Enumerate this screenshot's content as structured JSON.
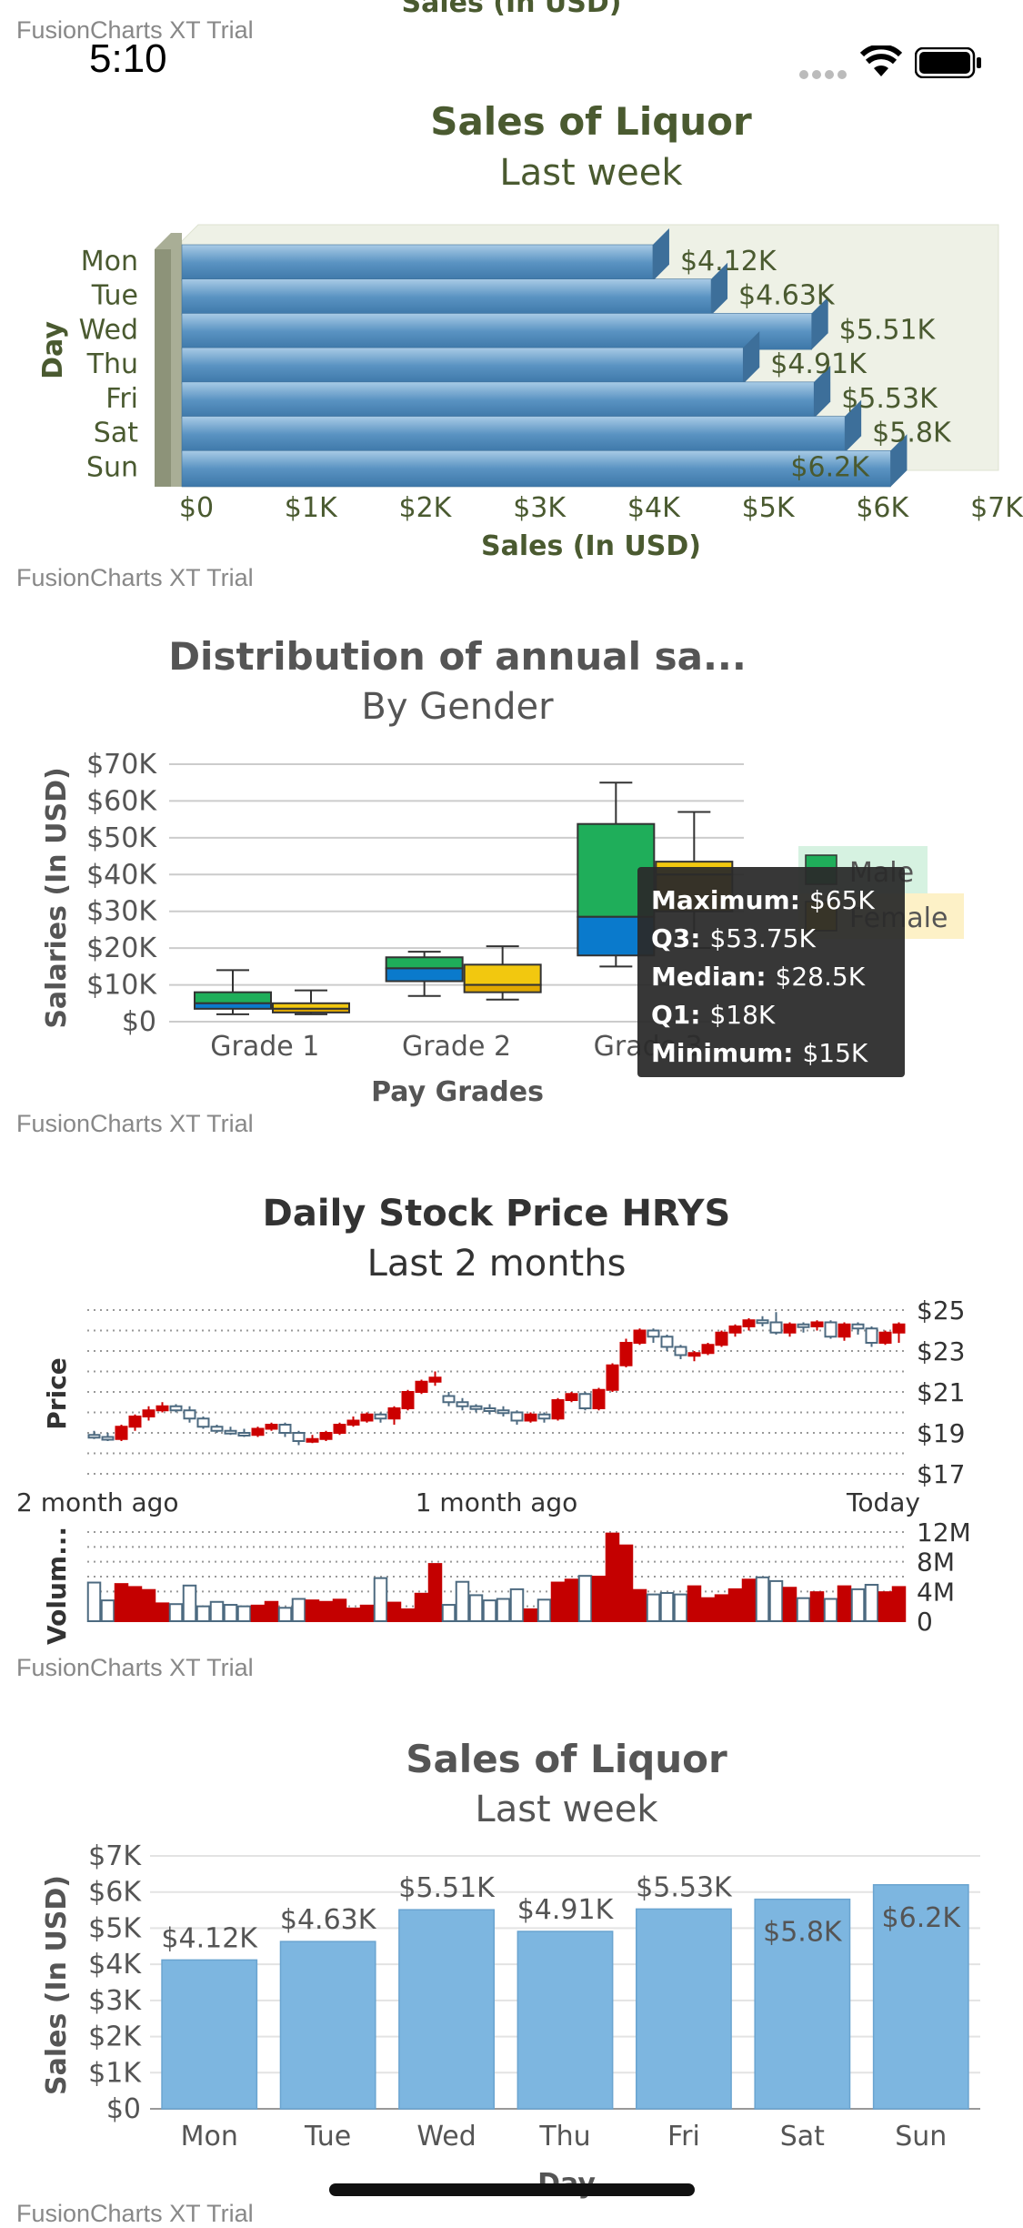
{
  "status_bar": {
    "time": "5:10"
  },
  "top_cut_text": "Sales (In USD)",
  "trial_label": "FusionCharts XT Trial",
  "charts": {
    "bar3d": {
      "title": "Sales of Liquor",
      "subtitle": "Last week",
      "xlabel": "Sales (In USD)",
      "ylabel": "Day",
      "color": "#5a93c2"
    },
    "boxplot": {
      "title": "Distribution of annual sa...",
      "subtitle": "By Gender",
      "xlabel": "Pay Grades",
      "ylabel": "Salaries (In USD)",
      "legend": {
        "male": "Male",
        "female": "Female"
      },
      "tooltip": {
        "maximum_label": "Maximum:",
        "maximum_value": "$65K",
        "q3_label": "Q3:",
        "q3_value": "$53.75K",
        "median_label": "Median:",
        "median_value": "$28.5K",
        "q1_label": "Q1:",
        "q1_value": "$18K",
        "minimum_label": "Minimum:",
        "minimum_value": "$15K"
      }
    },
    "stock": {
      "title": "Daily Stock Price HRYS",
      "subtitle": "Last 2 months",
      "price_label": "Price",
      "volume_label": "Volum...",
      "x_labels": [
        "2 month ago",
        "1 month ago",
        "Today"
      ]
    },
    "column": {
      "title": "Sales of Liquor",
      "subtitle": "Last week",
      "xlabel": "Day",
      "ylabel": "Sales (In USD)",
      "color": "#7db6e0"
    }
  },
  "chart_data": [
    {
      "type": "bar",
      "orientation": "horizontal-3d",
      "title": "Sales of Liquor",
      "subtitle": "Last week",
      "xlabel": "Sales (In USD)",
      "ylabel": "Day",
      "categories": [
        "Mon",
        "Tue",
        "Wed",
        "Thu",
        "Fri",
        "Sat",
        "Sun"
      ],
      "values": [
        4120,
        4630,
        5510,
        4910,
        5530,
        5800,
        6200
      ],
      "value_labels": [
        "$4.12K",
        "$4.63K",
        "$5.51K",
        "$4.91K",
        "$5.53K",
        "$5.8K",
        "$6.2K"
      ],
      "ticks": [
        "$0",
        "$1K",
        "$2K",
        "$3K",
        "$4K",
        "$5K",
        "$6K",
        "$7K"
      ],
      "xlim": [
        0,
        7000
      ]
    },
    {
      "type": "boxplot",
      "title": "Distribution of annual sa...",
      "subtitle": "By Gender",
      "xlabel": "Pay Grades",
      "ylabel": "Salaries (In USD)",
      "categories": [
        "Grade 1",
        "Grade 2",
        "Grade 3"
      ],
      "ticks": [
        "$0",
        "$10K",
        "$20K",
        "$30K",
        "$40K",
        "$50K",
        "$60K",
        "$70K"
      ],
      "ylim": [
        0,
        70000
      ],
      "series": [
        {
          "name": "Male",
          "color": "#1fae5a",
          "color_low": "#0a7acc",
          "boxes": [
            {
              "min": 2000,
              "q1": 3500,
              "median": 5000,
              "q3": 8000,
              "max": 14000
            },
            {
              "min": 7000,
              "q1": 11000,
              "median": 14500,
              "q3": 17500,
              "max": 19000
            },
            {
              "min": 15000,
              "q1": 18000,
              "median": 28500,
              "q3": 53750,
              "max": 65000
            }
          ]
        },
        {
          "name": "Female",
          "color": "#f2c80f",
          "color_low": "#e0a800",
          "boxes": [
            {
              "min": 2000,
              "q1": 2500,
              "median": 3500,
              "q3": 5000,
              "max": 8500
            },
            {
              "min": 6000,
              "q1": 8000,
              "median": 10000,
              "q3": 15500,
              "max": 20500
            },
            {
              "min": 20000,
              "q1": 30000,
              "median": 40000,
              "q3": 43500,
              "max": 57000
            }
          ]
        }
      ]
    },
    {
      "type": "candlestick",
      "title": "Daily Stock Price HRYS",
      "subtitle": "Last 2 months",
      "ylabel": "Price",
      "price_ticks": [
        "$25",
        "$23",
        "$21",
        "$19",
        "$17"
      ],
      "ylim": [
        17,
        25
      ],
      "volume_ticks": [
        "12M",
        "8M",
        "4M",
        "0"
      ],
      "volume_ylim": [
        0,
        12
      ],
      "candles": [
        {
          "o": 18.9,
          "c": 18.8,
          "h": 19.1,
          "l": 18.7,
          "v": 5.2
        },
        {
          "o": 18.8,
          "c": 18.7,
          "h": 19.0,
          "l": 18.6,
          "v": 2.8
        },
        {
          "o": 18.7,
          "c": 19.3,
          "h": 19.4,
          "l": 18.6,
          "v": 5.0
        },
        {
          "o": 19.3,
          "c": 19.8,
          "h": 19.9,
          "l": 19.1,
          "v": 4.6
        },
        {
          "o": 19.8,
          "c": 20.1,
          "h": 20.3,
          "l": 19.6,
          "v": 4.2
        },
        {
          "o": 20.1,
          "c": 20.3,
          "h": 20.5,
          "l": 20.0,
          "v": 2.4
        },
        {
          "o": 20.3,
          "c": 20.1,
          "h": 20.4,
          "l": 20.0,
          "v": 2.3
        },
        {
          "o": 20.1,
          "c": 19.7,
          "h": 20.3,
          "l": 19.5,
          "v": 4.8
        },
        {
          "o": 19.7,
          "c": 19.3,
          "h": 19.8,
          "l": 19.2,
          "v": 2.0
        },
        {
          "o": 19.3,
          "c": 19.1,
          "h": 19.4,
          "l": 19.0,
          "v": 2.6
        },
        {
          "o": 19.1,
          "c": 19.0,
          "h": 19.3,
          "l": 18.9,
          "v": 2.2
        },
        {
          "o": 19.0,
          "c": 18.9,
          "h": 19.2,
          "l": 18.8,
          "v": 2.0
        },
        {
          "o": 18.9,
          "c": 19.2,
          "h": 19.3,
          "l": 18.8,
          "v": 2.1
        },
        {
          "o": 19.2,
          "c": 19.4,
          "h": 19.5,
          "l": 19.1,
          "v": 2.6
        },
        {
          "o": 19.4,
          "c": 19.0,
          "h": 19.5,
          "l": 18.8,
          "v": 1.8
        },
        {
          "o": 19.0,
          "c": 18.6,
          "h": 19.1,
          "l": 18.4,
          "v": 3.0
        },
        {
          "o": 18.6,
          "c": 18.7,
          "h": 18.9,
          "l": 18.5,
          "v": 2.8
        },
        {
          "o": 18.7,
          "c": 19.0,
          "h": 19.1,
          "l": 18.6,
          "v": 2.6
        },
        {
          "o": 19.0,
          "c": 19.4,
          "h": 19.5,
          "l": 18.9,
          "v": 2.9
        },
        {
          "o": 19.4,
          "c": 19.6,
          "h": 19.8,
          "l": 19.3,
          "v": 1.7
        },
        {
          "o": 19.6,
          "c": 19.9,
          "h": 20.0,
          "l": 19.5,
          "v": 2.1
        },
        {
          "o": 19.9,
          "c": 19.7,
          "h": 20.0,
          "l": 19.5,
          "v": 5.8
        },
        {
          "o": 19.7,
          "c": 20.2,
          "h": 20.3,
          "l": 19.4,
          "v": 2.5
        },
        {
          "o": 20.2,
          "c": 21.0,
          "h": 21.1,
          "l": 20.1,
          "v": 1.6
        },
        {
          "o": 21.0,
          "c": 21.5,
          "h": 21.6,
          "l": 20.9,
          "v": 3.7
        },
        {
          "o": 21.5,
          "c": 21.7,
          "h": 22.0,
          "l": 21.3,
          "v": 7.7
        },
        {
          "o": 20.8,
          "c": 20.5,
          "h": 21.0,
          "l": 20.3,
          "v": 2.2
        },
        {
          "o": 20.5,
          "c": 20.3,
          "h": 20.7,
          "l": 20.1,
          "v": 5.3
        },
        {
          "o": 20.3,
          "c": 20.2,
          "h": 20.4,
          "l": 20.0,
          "v": 3.5
        },
        {
          "o": 20.2,
          "c": 20.1,
          "h": 20.4,
          "l": 19.9,
          "v": 2.8
        },
        {
          "o": 20.1,
          "c": 20.0,
          "h": 20.3,
          "l": 19.8,
          "v": 3.0
        },
        {
          "o": 20.0,
          "c": 19.6,
          "h": 20.1,
          "l": 19.4,
          "v": 4.3
        },
        {
          "o": 19.6,
          "c": 19.9,
          "h": 20.0,
          "l": 19.5,
          "v": 1.6
        },
        {
          "o": 19.9,
          "c": 19.7,
          "h": 20.0,
          "l": 19.5,
          "v": 2.9
        },
        {
          "o": 19.7,
          "c": 20.6,
          "h": 20.7,
          "l": 19.6,
          "v": 5.2
        },
        {
          "o": 20.6,
          "c": 20.9,
          "h": 21.0,
          "l": 20.5,
          "v": 5.6
        },
        {
          "o": 20.9,
          "c": 20.2,
          "h": 21.0,
          "l": 20.1,
          "v": 6.1
        },
        {
          "o": 20.2,
          "c": 21.1,
          "h": 21.2,
          "l": 20.1,
          "v": 6.0
        },
        {
          "o": 21.1,
          "c": 22.3,
          "h": 22.4,
          "l": 21.0,
          "v": 11.8
        },
        {
          "o": 22.3,
          "c": 23.4,
          "h": 23.6,
          "l": 22.2,
          "v": 10.2
        },
        {
          "o": 23.4,
          "c": 24.0,
          "h": 24.1,
          "l": 23.3,
          "v": 4.2
        },
        {
          "o": 24.0,
          "c": 23.7,
          "h": 24.1,
          "l": 23.4,
          "v": 3.6
        },
        {
          "o": 23.7,
          "c": 23.2,
          "h": 23.8,
          "l": 23.0,
          "v": 3.8
        },
        {
          "o": 23.2,
          "c": 22.8,
          "h": 23.3,
          "l": 22.6,
          "v": 3.6
        },
        {
          "o": 22.8,
          "c": 22.9,
          "h": 23.0,
          "l": 22.5,
          "v": 4.7
        },
        {
          "o": 22.9,
          "c": 23.3,
          "h": 23.4,
          "l": 22.8,
          "v": 3.1
        },
        {
          "o": 23.3,
          "c": 23.9,
          "h": 24.0,
          "l": 23.2,
          "v": 3.5
        },
        {
          "o": 23.9,
          "c": 24.2,
          "h": 24.3,
          "l": 23.7,
          "v": 4.3
        },
        {
          "o": 24.2,
          "c": 24.5,
          "h": 24.6,
          "l": 24.0,
          "v": 5.6
        },
        {
          "o": 24.5,
          "c": 24.4,
          "h": 24.7,
          "l": 24.2,
          "v": 5.9
        },
        {
          "o": 24.4,
          "c": 23.9,
          "h": 24.9,
          "l": 23.8,
          "v": 5.4
        },
        {
          "o": 23.9,
          "c": 24.3,
          "h": 24.4,
          "l": 23.7,
          "v": 4.5
        },
        {
          "o": 24.3,
          "c": 24.2,
          "h": 24.4,
          "l": 23.9,
          "v": 3.1
        },
        {
          "o": 24.2,
          "c": 24.4,
          "h": 24.5,
          "l": 24.0,
          "v": 3.9
        },
        {
          "o": 24.4,
          "c": 23.7,
          "h": 24.5,
          "l": 23.6,
          "v": 3.0
        },
        {
          "o": 23.7,
          "c": 24.3,
          "h": 24.4,
          "l": 23.5,
          "v": 4.7
        },
        {
          "o": 24.3,
          "c": 24.1,
          "h": 24.4,
          "l": 23.8,
          "v": 4.3
        },
        {
          "o": 24.1,
          "c": 23.4,
          "h": 24.2,
          "l": 23.2,
          "v": 4.9
        },
        {
          "o": 23.4,
          "c": 23.9,
          "h": 24.0,
          "l": 23.3,
          "v": 3.9
        },
        {
          "o": 23.9,
          "c": 24.3,
          "h": 24.4,
          "l": 23.4,
          "v": 4.6
        }
      ]
    },
    {
      "type": "bar",
      "title": "Sales of Liquor",
      "subtitle": "Last week",
      "xlabel": "Day",
      "ylabel": "Sales (In USD)",
      "categories": [
        "Mon",
        "Tue",
        "Wed",
        "Thu",
        "Fri",
        "Sat",
        "Sun"
      ],
      "values": [
        4120,
        4630,
        5510,
        4910,
        5530,
        5800,
        6200
      ],
      "value_labels": [
        "$4.12K",
        "$4.63K",
        "$5.51K",
        "$4.91K",
        "$5.53K",
        "$5.8K",
        "$6.2K"
      ],
      "ticks": [
        "$0",
        "$1K",
        "$2K",
        "$3K",
        "$4K",
        "$5K",
        "$6K",
        "$7K"
      ],
      "ylim": [
        0,
        7000
      ]
    }
  ]
}
